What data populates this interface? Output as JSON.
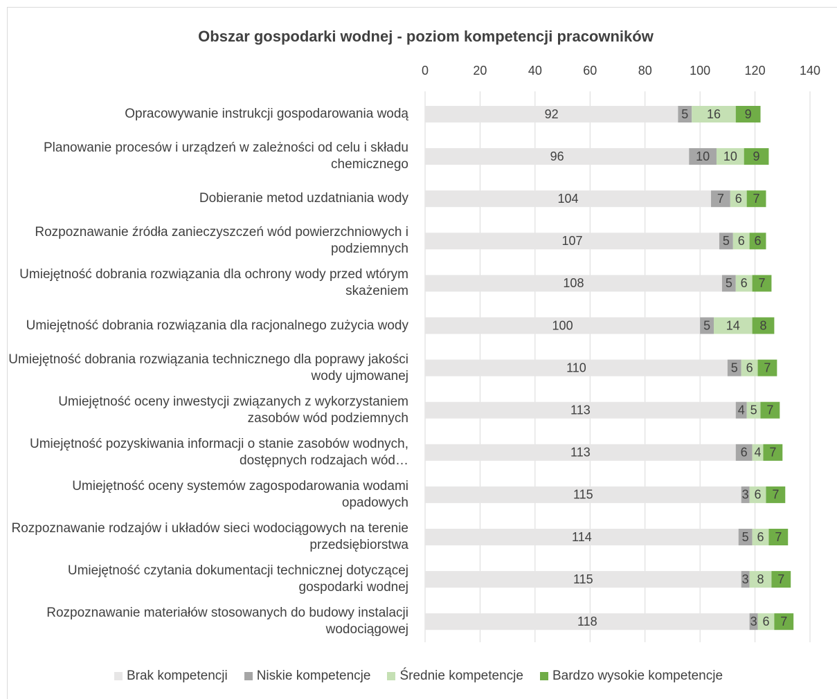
{
  "chart_data": {
    "type": "stacked_barh",
    "title": "Obszar gospodarki wodnej - poziom kompetencji pracowników",
    "categories": [
      "Opracowywanie instrukcji gospodarowania wodą",
      "Planowanie procesów i urządzeń w zależności od celu i składu chemicznego",
      "Dobieranie metod uzdatniania wody",
      "Rozpoznawanie źródła zanieczyszczeń wód powierzchniowych i podziemnych",
      "Umiejętność dobrania rozwiązania dla ochrony wody przed wtórym skażeniem",
      "Umiejętność dobrania rozwiązania dla racjonalnego zużycia wody",
      "Umiejętność dobrania rozwiązania technicznego dla poprawy jakości wody ujmowanej",
      "Umiejętność oceny inwestycji związanych z wykorzystaniem zasobów wód podziemnych",
      "Umiejętność pozyskiwania informacji o stanie zasobów wodnych, dostępnych rodzajach wód…",
      "Umiejętność oceny systemów zagospodarowania wodami opadowych",
      "Rozpoznawanie rodzajów i układów sieci wodociągowych na terenie przedsiębiorstwa",
      "Umiejętność czytania dokumentacji technicznej dotyczącej gospodarki wodnej",
      "Rozpoznawanie materiałów stosowanych do budowy instalacji wodociągowej"
    ],
    "series": [
      {
        "name": "Brak kompetencji",
        "color": "#e7e6e6",
        "values": [
          92,
          96,
          104,
          107,
          108,
          100,
          110,
          113,
          113,
          115,
          114,
          115,
          118
        ]
      },
      {
        "name": "Niskie kompetencje",
        "color": "#a6a6a6",
        "values": [
          5,
          10,
          7,
          5,
          5,
          5,
          5,
          4,
          6,
          3,
          5,
          3,
          3
        ]
      },
      {
        "name": "Średnie kompetencje",
        "color": "#c5e0b4",
        "values": [
          16,
          10,
          6,
          6,
          6,
          14,
          6,
          5,
          4,
          6,
          6,
          8,
          6
        ]
      },
      {
        "name": "Bardzo wysokie kompetencje",
        "color": "#70ad47",
        "values": [
          9,
          9,
          7,
          6,
          7,
          8,
          7,
          7,
          7,
          7,
          7,
          7,
          7
        ]
      }
    ],
    "xlim": [
      0,
      140
    ],
    "xticks": [
      0,
      20,
      40,
      60,
      80,
      100,
      120,
      140
    ],
    "grid": true,
    "legend": "bottom"
  }
}
